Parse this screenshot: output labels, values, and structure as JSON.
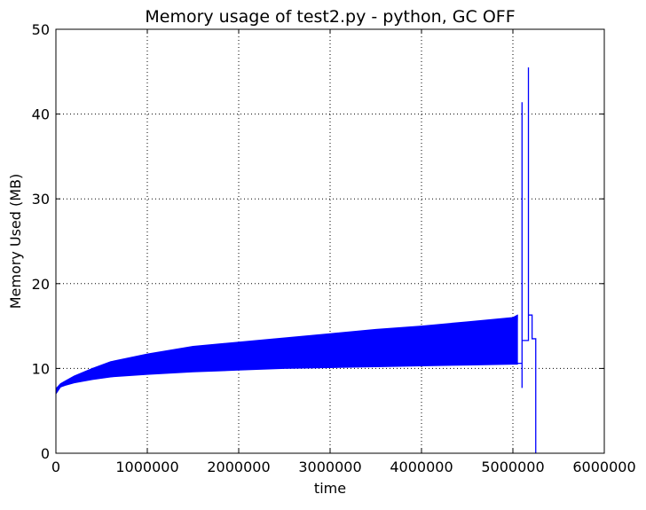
{
  "chart_data": {
    "type": "line",
    "title": "Memory usage of test2.py - python, GC OFF",
    "xlabel": "time",
    "ylabel": "Memory Used (MB)",
    "xlim": [
      0,
      6000000
    ],
    "ylim": [
      0,
      50
    ],
    "x_ticks": [
      0,
      1000000,
      2000000,
      3000000,
      4000000,
      5000000,
      6000000
    ],
    "x_tick_labels": [
      "0",
      "1000000",
      "2000000",
      "3000000",
      "4000000",
      "5000000",
      "6000000"
    ],
    "y_ticks": [
      0,
      10,
      20,
      30,
      40,
      50
    ],
    "y_tick_labels": [
      "0",
      "10",
      "20",
      "30",
      "40",
      "50"
    ],
    "grid": true,
    "grid_style": "dotted",
    "legend": "none",
    "series": [
      {
        "color": "#0000ff",
        "dense_band": {
          "description_of_shape": "rapid oscillation between lower and upper envelopes",
          "x": [
            0,
            50000,
            100000,
            200000,
            400000,
            600000,
            1000000,
            1500000,
            2000000,
            2500000,
            3000000,
            3500000,
            4000000,
            4500000,
            5000000,
            5050000
          ],
          "lower": [
            7.0,
            7.8,
            8.0,
            8.3,
            8.7,
            9.0,
            9.3,
            9.6,
            9.8,
            10.0,
            10.1,
            10.2,
            10.3,
            10.4,
            10.5,
            10.5
          ],
          "upper": [
            7.6,
            8.2,
            8.5,
            9.1,
            10.0,
            10.8,
            11.7,
            12.6,
            13.1,
            13.6,
            14.1,
            14.6,
            15.0,
            15.5,
            16.0,
            16.3
          ]
        },
        "tail": {
          "x": [
            5050000,
            5100000,
            5100000,
            5100000,
            5100000,
            5100000,
            5170000,
            5170000,
            5170000,
            5170000,
            5210000,
            5210000,
            5220000,
            5220000,
            5250000,
            5250000
          ],
          "y": [
            10.6,
            10.6,
            13.3,
            7.7,
            41.4,
            13.3,
            13.3,
            16.3,
            45.5,
            16.3,
            16.3,
            13.5,
            13.5,
            13.5,
            13.5,
            0
          ]
        }
      }
    ]
  }
}
